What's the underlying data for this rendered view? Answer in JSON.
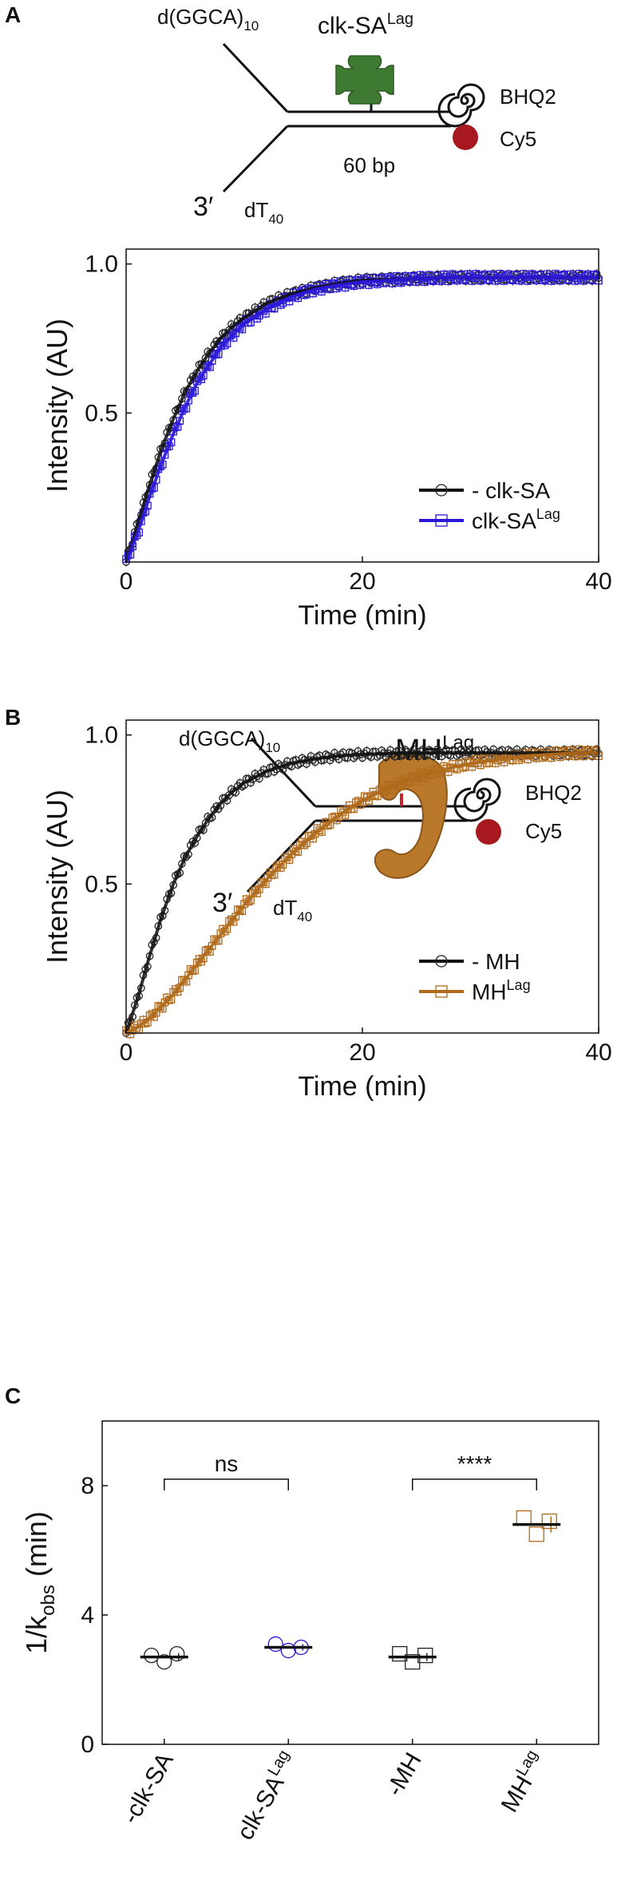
{
  "panels": {
    "A": {
      "letter": "A",
      "diagram": {
        "strand_label": "d(GGCA)",
        "strand_sub": "10",
        "protein_label": "clk-SA",
        "protein_sup": "Lag",
        "quencher_label": "BHQ2",
        "dye_label": "Cy5",
        "duplex_label": "60 bp",
        "end_label": "3′",
        "tail_label": "dT",
        "tail_sub": "40",
        "colors": {
          "protein": "#3f7a32",
          "dye": "#a8181f"
        }
      }
    },
    "B": {
      "letter": "B",
      "diagram": {
        "strand_label": "d(GGCA)",
        "strand_sub": "10",
        "protein_label": "MH",
        "protein_sup": "Lag",
        "quencher_label": "BHQ2",
        "dye_label": "Cy5",
        "end_label": "3′",
        "tail_label": "dT",
        "tail_sub": "40",
        "colors": {
          "protein": "#b9782a",
          "dye": "#a8181f"
        }
      }
    },
    "C": {
      "letter": "C"
    }
  },
  "chart_data": [
    {
      "panel": "A",
      "type": "line",
      "xlabel": "Time (min)",
      "ylabel": "Intensity (AU)",
      "xlim": [
        0,
        40
      ],
      "ylim": [
        0,
        1.05
      ],
      "xticks": [
        0,
        20,
        40
      ],
      "yticks": [
        0.5,
        1.0
      ],
      "ytick_labels": [
        "0.5",
        "1.0"
      ],
      "grid": false,
      "legend_position": "bottom-right",
      "series": [
        {
          "name": "- clk-SA",
          "name_sup": "",
          "marker": "circle",
          "color": "#222222",
          "x": [
            0,
            1,
            2,
            3,
            4,
            5,
            6,
            7,
            8,
            9,
            10,
            12,
            14,
            16,
            18,
            20,
            24,
            28,
            32,
            36,
            40
          ],
          "y": [
            0.0,
            0.13,
            0.26,
            0.38,
            0.48,
            0.57,
            0.64,
            0.7,
            0.75,
            0.79,
            0.82,
            0.87,
            0.9,
            0.92,
            0.935,
            0.945,
            0.95,
            0.955,
            0.955,
            0.955,
            0.955
          ]
        },
        {
          "name": "clk-SA",
          "name_sup": "Lag",
          "marker": "square",
          "color": "#2b18d9",
          "x": [
            0,
            1,
            2,
            3,
            4,
            5,
            6,
            7,
            8,
            9,
            10,
            12,
            14,
            16,
            18,
            20,
            24,
            28,
            32,
            36,
            40
          ],
          "y": [
            0.0,
            0.1,
            0.22,
            0.33,
            0.43,
            0.52,
            0.6,
            0.66,
            0.72,
            0.76,
            0.8,
            0.85,
            0.89,
            0.915,
            0.93,
            0.94,
            0.95,
            0.955,
            0.955,
            0.955,
            0.955
          ]
        }
      ]
    },
    {
      "panel": "B",
      "type": "line",
      "xlabel": "Time (min)",
      "ylabel": "Intensity (AU)",
      "xlim": [
        0,
        40
      ],
      "ylim": [
        0,
        1.05
      ],
      "xticks": [
        0,
        20,
        40
      ],
      "yticks": [
        0.5,
        1.0
      ],
      "ytick_labels": [
        "0.5",
        "1.0"
      ],
      "grid": false,
      "legend_position": "bottom-right",
      "series": [
        {
          "name": "- MH",
          "name_sup": "",
          "marker": "circle",
          "color": "#222222",
          "x": [
            0,
            1,
            2,
            3,
            4,
            5,
            6,
            7,
            8,
            9,
            10,
            12,
            14,
            16,
            18,
            20,
            24,
            28,
            32,
            36,
            40
          ],
          "y": [
            0.0,
            0.12,
            0.26,
            0.39,
            0.5,
            0.59,
            0.66,
            0.72,
            0.77,
            0.81,
            0.84,
            0.88,
            0.905,
            0.92,
            0.93,
            0.935,
            0.94,
            0.94,
            0.94,
            0.94,
            0.94
          ]
        },
        {
          "name": "MH",
          "name_sup": "Lag",
          "marker": "square",
          "color": "#b06a1c",
          "x": [
            0,
            1,
            2,
            3,
            4,
            5,
            6,
            8,
            10,
            12,
            14,
            16,
            18,
            20,
            22,
            24,
            26,
            28,
            30,
            32,
            34,
            36,
            38,
            40
          ],
          "y": [
            0.0,
            0.02,
            0.05,
            0.09,
            0.13,
            0.18,
            0.23,
            0.33,
            0.43,
            0.52,
            0.6,
            0.67,
            0.73,
            0.78,
            0.82,
            0.85,
            0.875,
            0.895,
            0.91,
            0.92,
            0.93,
            0.935,
            0.94,
            0.94
          ]
        }
      ]
    },
    {
      "panel": "C",
      "type": "scatter",
      "ylabel": "1/k",
      "ylabel_sub": "obs",
      "ylabel_unit": " (min)",
      "ylim": [
        0,
        10
      ],
      "yticks": [
        0,
        4,
        8
      ],
      "categories": [
        {
          "label": "-clk-SA",
          "sup": ""
        },
        {
          "label": "clk-SA",
          "sup": "Lag"
        },
        {
          "label": "-MH",
          "sup": ""
        },
        {
          "label": "MH",
          "sup": "Lag"
        }
      ],
      "groups": [
        {
          "marker": "circle",
          "color": "#222222",
          "points": [
            2.75,
            2.55,
            2.8
          ],
          "mean": 2.7,
          "sd": 0.12
        },
        {
          "marker": "circle",
          "color": "#2b18d9",
          "points": [
            3.1,
            2.9,
            3.0
          ],
          "mean": 3.0,
          "sd": 0.1
        },
        {
          "marker": "square",
          "color": "#222222",
          "points": [
            2.8,
            2.55,
            2.75
          ],
          "mean": 2.7,
          "sd": 0.12
        },
        {
          "marker": "square",
          "color": "#b06a1c",
          "points": [
            7.0,
            6.5,
            6.9
          ],
          "mean": 6.8,
          "sd": 0.25
        }
      ],
      "annotations": [
        {
          "between": [
            0,
            1
          ],
          "text": "ns",
          "y": 8.2
        },
        {
          "between": [
            2,
            3
          ],
          "text": "****",
          "y": 8.2
        }
      ]
    }
  ]
}
